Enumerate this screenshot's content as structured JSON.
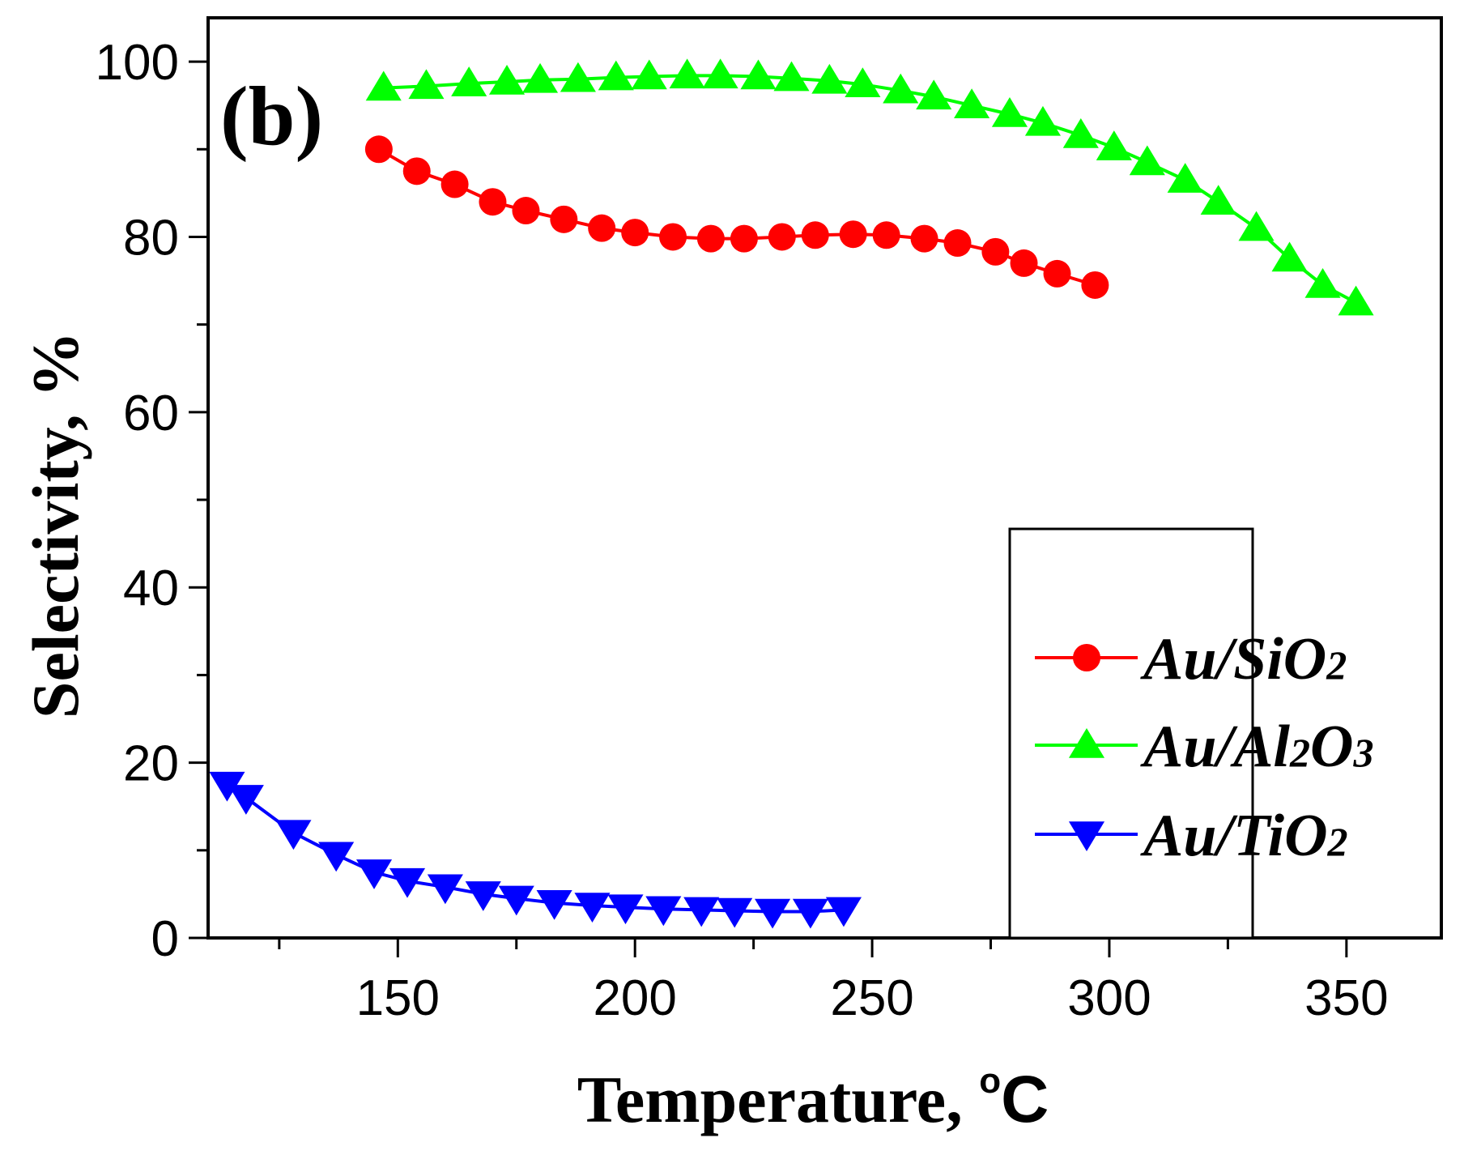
{
  "chart_data": {
    "type": "line",
    "panel_label": "(b)",
    "xlabel": "Temperature, ",
    "xlabel_degree": "o",
    "xlabel_unit": "C",
    "ylabel": "Selectivity, %",
    "xlim": [
      110,
      370
    ],
    "ylim": [
      0,
      105
    ],
    "x_ticks": [
      150,
      200,
      250,
      300,
      350
    ],
    "x_tick_labels": [
      "150",
      "200",
      "250",
      "300",
      "350"
    ],
    "y_ticks": [
      0,
      20,
      40,
      60,
      80,
      100
    ],
    "y_tick_labels": [
      "0",
      "20",
      "40",
      "60",
      "80",
      "100"
    ],
    "legend_position": "lower-right",
    "series": [
      {
        "name": "Au/SiO2",
        "legend_main": "Au/SiO",
        "legend_sub": "2",
        "legend_tail": "",
        "color": "#ff0000",
        "marker": "circle",
        "x": [
          146,
          154,
          162,
          170,
          177,
          185,
          193,
          200,
          208,
          216,
          223,
          231,
          238,
          246,
          253,
          261,
          268,
          276,
          282,
          289,
          297
        ],
        "y": [
          90,
          87.5,
          86,
          84,
          83,
          82,
          81,
          80.5,
          80,
          79.8,
          79.8,
          80,
          80.2,
          80.3,
          80.2,
          79.8,
          79.3,
          78.3,
          77,
          75.8,
          74.5
        ]
      },
      {
        "name": "Au/Al2O3",
        "legend_main": "Au/Al",
        "legend_sub": "2",
        "legend_tail": "O",
        "legend_sub2": "3",
        "color": "#00ff00",
        "marker": "triangle-up",
        "x": [
          147,
          156,
          165,
          173,
          180,
          188,
          196,
          203,
          211,
          218,
          226,
          233,
          241,
          248,
          256,
          263,
          271,
          279,
          286,
          294,
          301,
          308,
          316,
          323,
          331,
          338,
          345,
          352
        ],
        "y": [
          97,
          97.2,
          97.5,
          97.7,
          97.9,
          98,
          98.2,
          98.3,
          98.4,
          98.4,
          98.3,
          98.1,
          97.8,
          97.4,
          96.7,
          96,
          95,
          94,
          93,
          91.6,
          90.2,
          88.5,
          86.5,
          84,
          81,
          77.5,
          74.5,
          72.5
        ]
      },
      {
        "name": "Au/TiO2",
        "legend_main": "Au/TiO",
        "legend_sub": "2",
        "legend_tail": "",
        "color": "#0000ff",
        "marker": "triangle-down",
        "x": [
          114,
          118,
          128,
          137,
          145,
          152,
          160,
          168,
          175,
          183,
          191,
          198,
          206,
          214,
          221,
          229,
          237,
          244
        ],
        "y": [
          17.5,
          16,
          12,
          9.5,
          7.5,
          6.5,
          5.8,
          5,
          4.5,
          4,
          3.7,
          3.5,
          3.3,
          3.2,
          3.1,
          3,
          3,
          3.2
        ]
      }
    ]
  }
}
